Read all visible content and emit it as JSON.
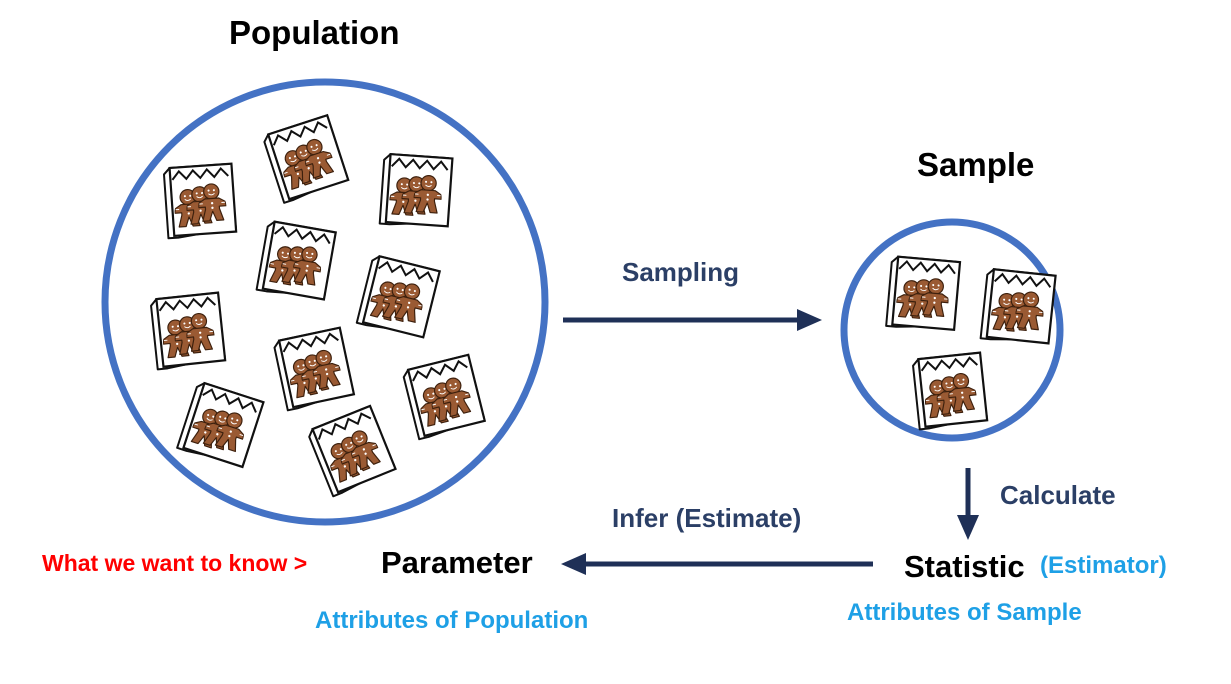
{
  "population": {
    "title": "Population"
  },
  "sample": {
    "title": "Sample"
  },
  "arrows": {
    "sampling": "Sampling",
    "calculate": "Calculate",
    "infer": "Infer (Estimate)"
  },
  "inference": {
    "want": "What we want to know >",
    "parameter": "Parameter",
    "statistic": "Statistic",
    "estimator": "(Estimator)",
    "attr_population": "Attributes of Population",
    "attr_sample": "Attributes of Sample"
  },
  "colors": {
    "circle": "#4472c4",
    "arrow": "#1f3057",
    "cookie": "#9a5a33",
    "accent_red": "#ff0000",
    "accent_blue": "#1ea0e6"
  },
  "icons": [
    "cookie-bag-icon"
  ]
}
